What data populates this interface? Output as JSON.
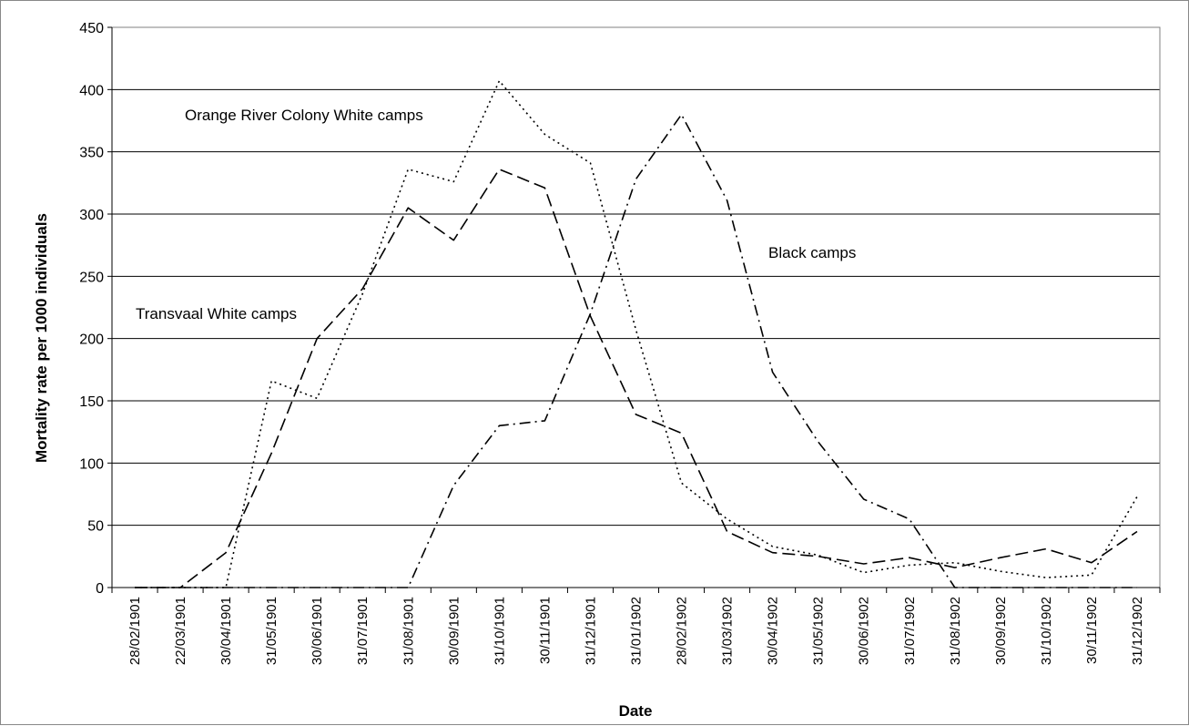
{
  "chart_data": {
    "type": "line",
    "xlabel": "Date",
    "ylabel": "Mortality rate per 1000 individuals",
    "ylim": [
      0,
      450
    ],
    "yticks": [
      0,
      50,
      100,
      150,
      200,
      250,
      300,
      350,
      400,
      450
    ],
    "grid": "horizontal",
    "categories": [
      "28/02/1901",
      "22/03/1901",
      "30/04/1901",
      "31/05/1901",
      "30/06/1901",
      "31/07/1901",
      "31/08/1901",
      "30/09/1901",
      "31/10/1901",
      "30/11/1901",
      "31/12/1901",
      "31/01/1902",
      "28/02/1902",
      "31/03/1902",
      "30/04/1902",
      "31/05/1902",
      "30/06/1902",
      "31/07/1902",
      "31/08/1902",
      "30/09/1902",
      "31/10/1902",
      "30/11/1902",
      "31/12/1902"
    ],
    "series": [
      {
        "name": "Orange River Colony White camps",
        "style": "dotted",
        "values": [
          0,
          0,
          0,
          166,
          152,
          236,
          336,
          326,
          407,
          364,
          341,
          207,
          84,
          55,
          33,
          26,
          12,
          18,
          20,
          13,
          8,
          10,
          73
        ]
      },
      {
        "name": "Transvaal White camps",
        "style": "dashed",
        "values": [
          0,
          0,
          28,
          108,
          200,
          240,
          305,
          279,
          336,
          321,
          218,
          139,
          124,
          45,
          28,
          25,
          19,
          24,
          16,
          24,
          31,
          20,
          45
        ]
      },
      {
        "name": "Black camps",
        "style": "dashdot",
        "values": [
          0,
          0,
          0,
          0,
          0,
          0,
          0,
          82,
          130,
          134,
          220,
          328,
          380,
          311,
          173,
          117,
          71,
          55,
          0,
          0,
          0,
          0,
          0
        ]
      }
    ],
    "annotations": [
      {
        "series": "Orange River Colony White camps",
        "text": "Orange River Colony White camps"
      },
      {
        "series": "Transvaal White camps",
        "text": "Transvaal White camps"
      },
      {
        "series": "Black camps",
        "text": "Black camps"
      }
    ]
  }
}
